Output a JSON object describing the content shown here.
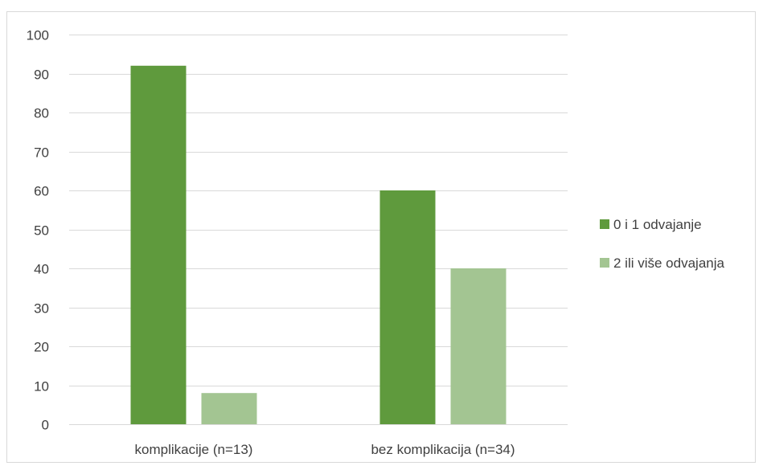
{
  "chart_data": {
    "type": "bar",
    "title": "",
    "xlabel": "",
    "ylabel": "",
    "categories": [
      "komplikacije (n=13)",
      "bez komplikacija (n=34)"
    ],
    "series": [
      {
        "name": "0 i 1 odvajanje",
        "values": [
          92,
          60
        ],
        "color": "#5f9a3d"
      },
      {
        "name": "2 ili više odvajanja",
        "values": [
          8,
          40
        ],
        "color": "#a3c592"
      }
    ],
    "ylim": [
      0,
      100
    ],
    "yticks": [
      0,
      10,
      20,
      30,
      40,
      50,
      60,
      70,
      80,
      90,
      100
    ],
    "grid": true,
    "gridColor": "#d9d9d9",
    "legend": "right"
  }
}
